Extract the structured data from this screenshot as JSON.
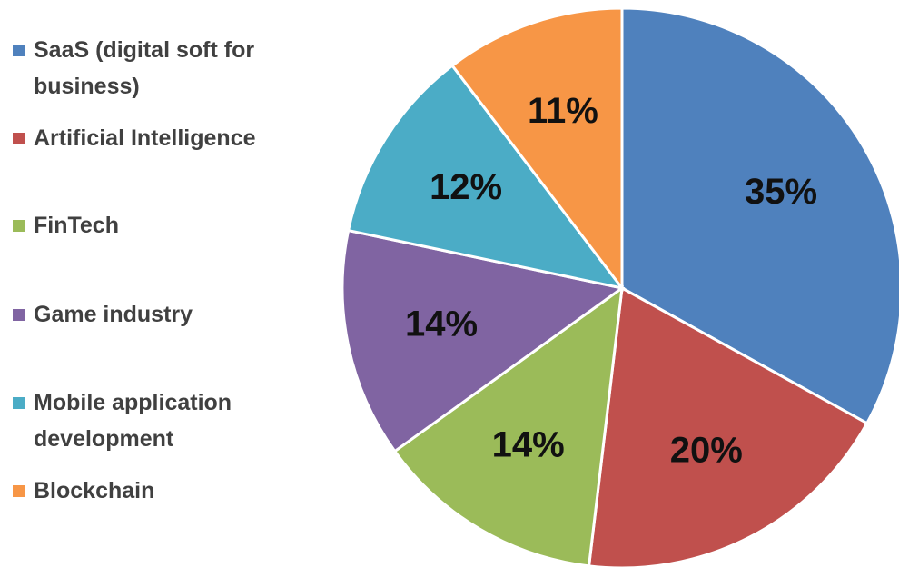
{
  "chart_data": {
    "type": "pie",
    "categories": [
      "SaaS (digital soft for business)",
      "Artificial Intelligence",
      "FinTech",
      "Game industry",
      "Mobile application development",
      "Blockchain"
    ],
    "values": [
      35,
      20,
      14,
      14,
      12,
      11
    ],
    "value_labels": [
      "35%",
      "20%",
      "14%",
      "14%",
      "12%",
      "11%"
    ],
    "colors": [
      "#4f81bd",
      "#c0504d",
      "#9bbb59",
      "#8064a2",
      "#4bacc6",
      "#f79646"
    ],
    "legend": "left"
  }
}
